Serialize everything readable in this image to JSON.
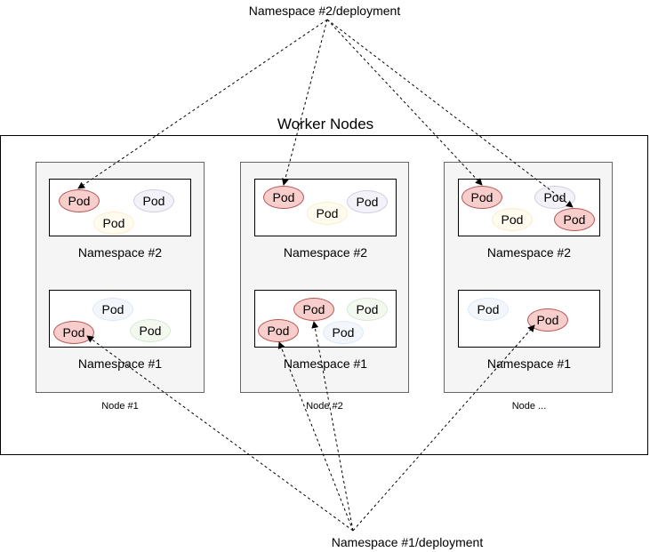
{
  "top_deployment": "Namespace #2/deployment",
  "bottom_deployment": "Namespace #1/deployment",
  "worker_title": "Worker Nodes",
  "namespace2_label": "Namespace #2",
  "namespace1_label": "Namespace #1",
  "pod_label": "Pod",
  "nodes": [
    {
      "label": "Node #1"
    },
    {
      "label": "Node #2"
    },
    {
      "label": "Node ..."
    }
  ]
}
